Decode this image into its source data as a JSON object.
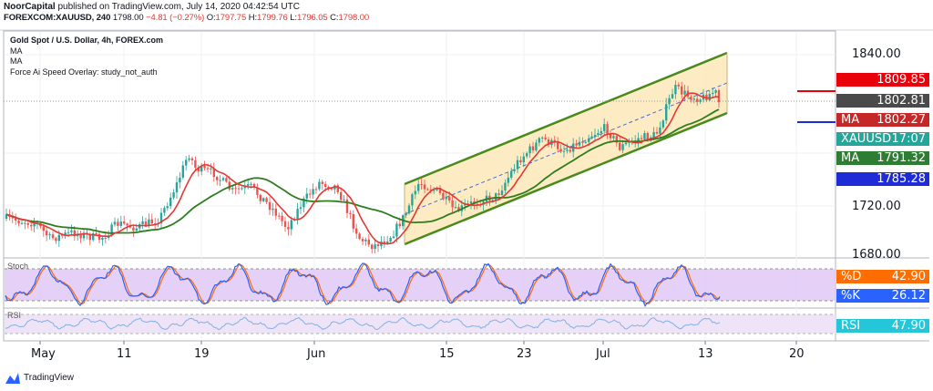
{
  "header": {
    "publisher": "NoorCapital",
    "published_text": " published on TradingView.com, July 14, 2020 04:42:54 UTC",
    "symbol": "FOREXCOM:XAUUSD, 240",
    "last": "1798.00",
    "change": "−4.81 (−0.27%)",
    "o_label": "O:",
    "o_value": "1797.75",
    "h_label": "H:",
    "h_value": "1799.76",
    "l_label": "L:",
    "l_value": "1796.05",
    "c_label": "C:",
    "c_value": "1798.00"
  },
  "legend": {
    "title": "Gold Spot / U.S. Dollar, 4h, FOREX.com",
    "ma1": "MA",
    "ma2": "MA",
    "overlay": "Force Ai Speed Overlay: study_not_auth"
  },
  "price_axis": [
    "1840.00",
    "1720.00",
    "1680.00"
  ],
  "price_tags": [
    {
      "name": "",
      "value": "1809.85",
      "color": "#e8000b"
    },
    {
      "name": "",
      "value": "1802.81",
      "color": "#4a4a4a"
    },
    {
      "name": "MA",
      "value": "1802.27",
      "color": "#c62828"
    },
    {
      "name": "XAUUSD",
      "value": "17:07",
      "color": "#26a69a"
    },
    {
      "name": "MA",
      "value": "1791.32",
      "color": "#2e7d32"
    },
    {
      "name": "",
      "value": "1785.28",
      "color": "#1e2bd6"
    }
  ],
  "stoch": {
    "label": "Stoch",
    "d_label": "%D",
    "d_value": "42.90",
    "k_label": "%K",
    "k_value": "26.12"
  },
  "rsi": {
    "label": "RSI",
    "tag_label": "RSI",
    "tag_value": "47.90"
  },
  "time_axis": [
    "May",
    "11",
    "19",
    "Jun",
    "15",
    "23",
    "Jul",
    "13",
    "20"
  ],
  "footer": {
    "brand": "TradingView"
  },
  "colors": {
    "bull": "#26a69a",
    "bear": "#ef5350",
    "channel": "#4a8a1c",
    "ma_fast": "#e53935",
    "ma_slow": "#2e7d1e",
    "stoch_fill": "#e1c8f7",
    "rsi_fill": "#efe3f8"
  }
}
